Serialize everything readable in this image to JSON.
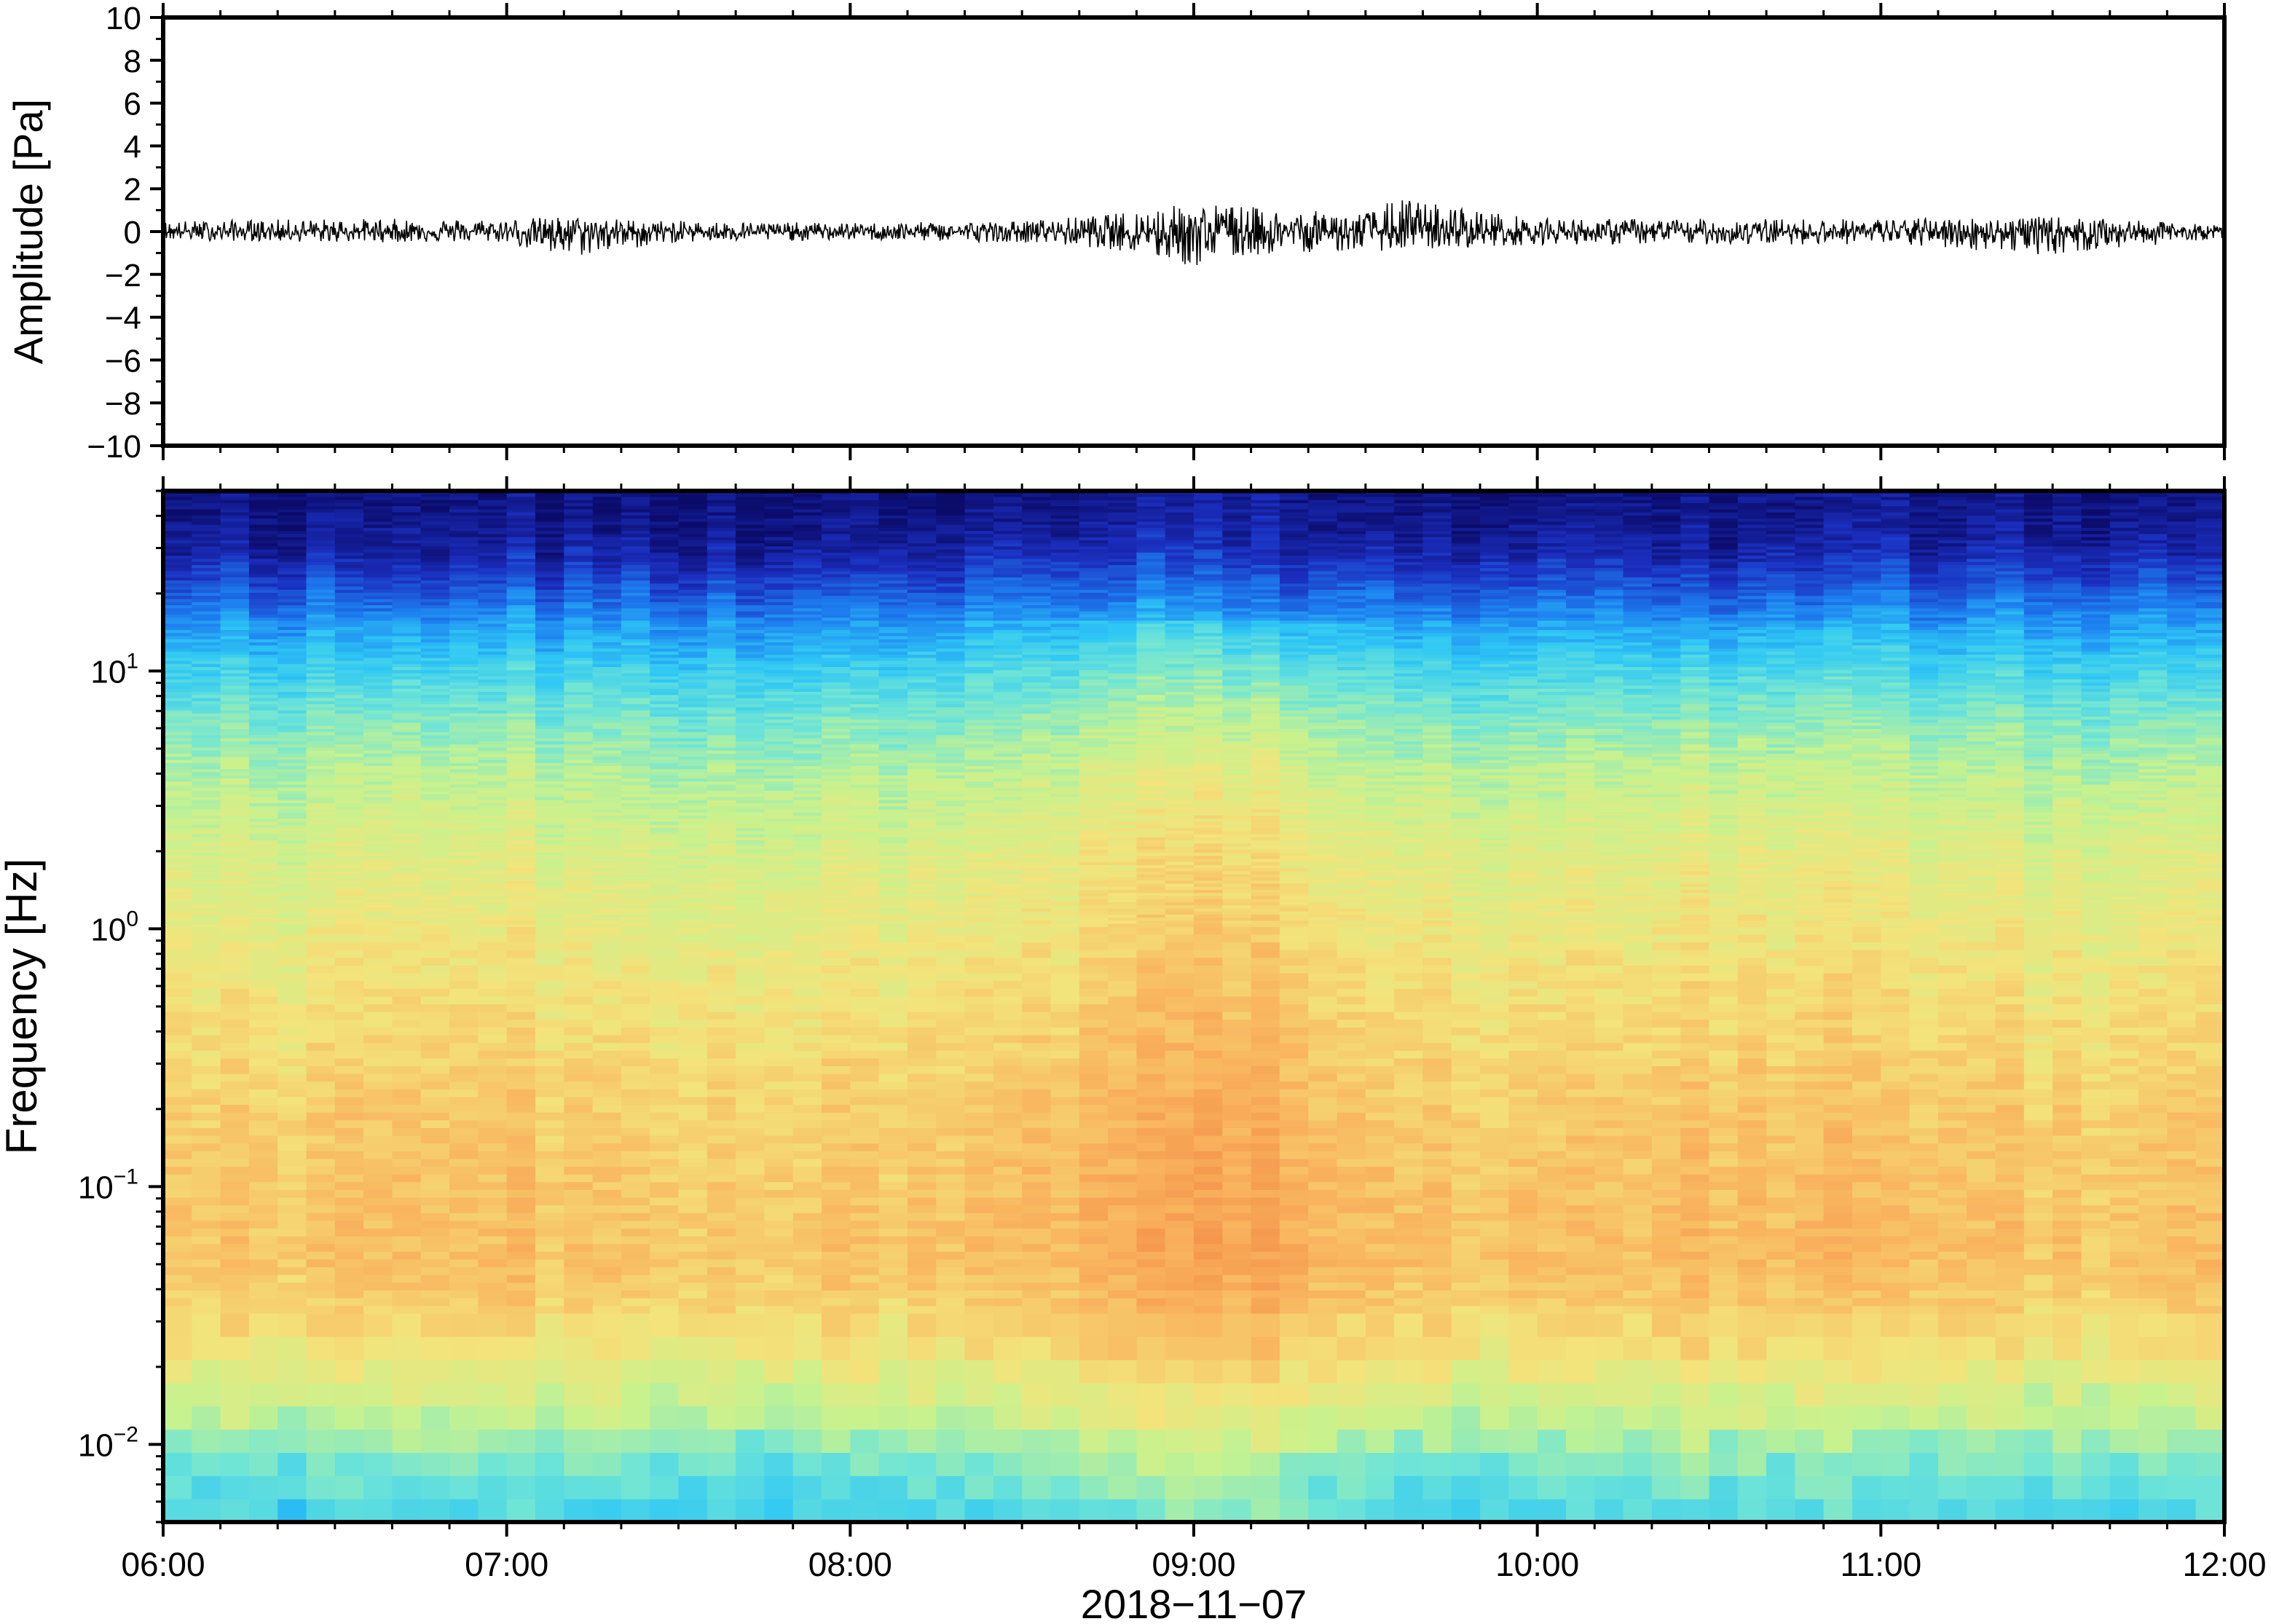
{
  "chart_data": [
    {
      "type": "line",
      "panel": "waveform",
      "ylabel": "Amplitude [Pa]",
      "ylim": [
        -10,
        10
      ],
      "y_ticks": [
        10,
        8,
        6,
        4,
        2,
        0,
        -2,
        -4,
        -6,
        -8,
        -10
      ],
      "y_tick_labels": [
        "10",
        "8",
        "6",
        "4",
        "2",
        "0",
        "−2",
        "−4",
        "−6",
        "−8",
        "−10"
      ],
      "x_range_hours": [
        6,
        12
      ],
      "envelope": {
        "x": [
          6.0,
          6.5,
          7.0,
          7.15,
          7.5,
          8.0,
          8.5,
          8.75,
          8.9,
          9.0,
          9.1,
          9.25,
          9.5,
          9.6,
          10.0,
          10.5,
          11.0,
          11.5,
          12.0
        ],
        "y_max": [
          0.5,
          0.6,
          0.6,
          0.7,
          0.5,
          0.4,
          0.5,
          0.8,
          1.2,
          1.3,
          1.3,
          1.0,
          0.9,
          1.6,
          0.6,
          0.6,
          0.6,
          0.7,
          0.3
        ],
        "y_min": [
          -0.4,
          -0.5,
          -0.5,
          -1.3,
          -0.5,
          -0.4,
          -0.5,
          -0.8,
          -1.3,
          -1.7,
          -1.3,
          -1.0,
          -0.9,
          -0.9,
          -0.6,
          -0.6,
          -0.6,
          -1.1,
          -0.3
        ]
      },
      "grid": false
    },
    {
      "type": "heatmap",
      "panel": "spectrogram",
      "ylabel": "Frequency [Hz]",
      "y_scale": "log",
      "ylim": [
        0.005,
        50
      ],
      "y_ticks": [
        0.01,
        0.1,
        1,
        10
      ],
      "y_tick_labels": [
        {
          "base": "10",
          "exp": "−2"
        },
        {
          "base": "10",
          "exp": "−1"
        },
        {
          "base": "10",
          "exp": "0"
        },
        {
          "base": "10",
          "exp": "1"
        }
      ],
      "colormap": [
        "#0b0b6a",
        "#1b2fc0",
        "#1d7ff0",
        "#2ec7f5",
        "#6fe5d6",
        "#c8f28e",
        "#f3e37a",
        "#f9b45e",
        "#f28a45"
      ],
      "colormap_positions": [
        0.0,
        0.12,
        0.25,
        0.37,
        0.48,
        0.6,
        0.72,
        0.85,
        1.0
      ],
      "time_windows": 72,
      "intensity_profile": {
        "log10_freq": [
          -2.3,
          -2.1,
          -1.9,
          -1.6,
          -1.3,
          -1.0,
          -0.7,
          -0.3,
          0.0,
          0.3,
          0.6,
          0.8,
          1.0,
          1.2,
          1.35,
          1.5,
          1.7
        ],
        "level": [
          0.4,
          0.46,
          0.58,
          0.72,
          0.8,
          0.79,
          0.77,
          0.72,
          0.68,
          0.64,
          0.57,
          0.5,
          0.4,
          0.28,
          0.16,
          0.06,
          0.02
        ]
      },
      "activity_over_time": {
        "x": [
          6.0,
          6.5,
          7.0,
          7.5,
          8.0,
          8.5,
          8.75,
          9.0,
          9.25,
          9.5,
          9.75,
          10.0,
          10.5,
          10.75,
          11.0,
          11.5,
          12.0
        ],
        "boost": [
          0.0,
          0.01,
          0.02,
          0.01,
          0.0,
          0.04,
          0.07,
          0.1,
          0.08,
          0.06,
          0.02,
          0.02,
          0.03,
          0.04,
          0.02,
          0.01,
          0.0
        ]
      }
    }
  ],
  "x_axis": {
    "x_range_hours": [
      6,
      12
    ],
    "tick_hours": [
      6,
      7,
      8,
      9,
      10,
      11,
      12
    ],
    "tick_labels": [
      "06:00",
      "07:00",
      "08:00",
      "09:00",
      "10:00",
      "11:00",
      "12:00"
    ],
    "xlabel": "2018−11−07"
  }
}
